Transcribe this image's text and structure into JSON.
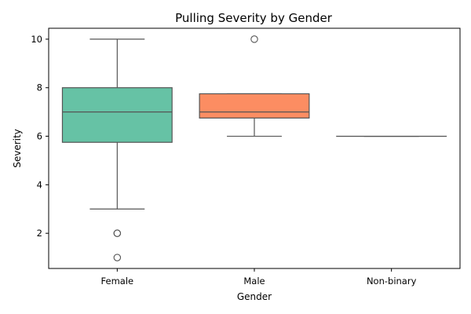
{
  "chart_data": {
    "type": "box",
    "title": "Pulling Severity by Gender",
    "xlabel": "Gender",
    "ylabel": "Severity",
    "ylim": [
      0.55,
      10.45
    ],
    "yticks": [
      2,
      4,
      6,
      8,
      10
    ],
    "grid": false,
    "categories": [
      "Female",
      "Male",
      "Non-binary"
    ],
    "boxes": [
      {
        "category": "Female",
        "color": "#66c2a5",
        "q1": 5.75,
        "median": 7,
        "q3": 8,
        "whisker_low": 3,
        "whisker_high": 10,
        "outliers": [
          2,
          2,
          1
        ]
      },
      {
        "category": "Male",
        "color": "#fc8d62",
        "q1": 6.75,
        "median": 7,
        "q3": 7.75,
        "whisker_low": 6,
        "whisker_high": 7.75,
        "outliers": [
          10
        ]
      },
      {
        "category": "Non-binary",
        "color": "#8da0cb",
        "q1": 6,
        "median": 6,
        "q3": 6,
        "whisker_low": 6,
        "whisker_high": 6,
        "outliers": []
      }
    ]
  }
}
